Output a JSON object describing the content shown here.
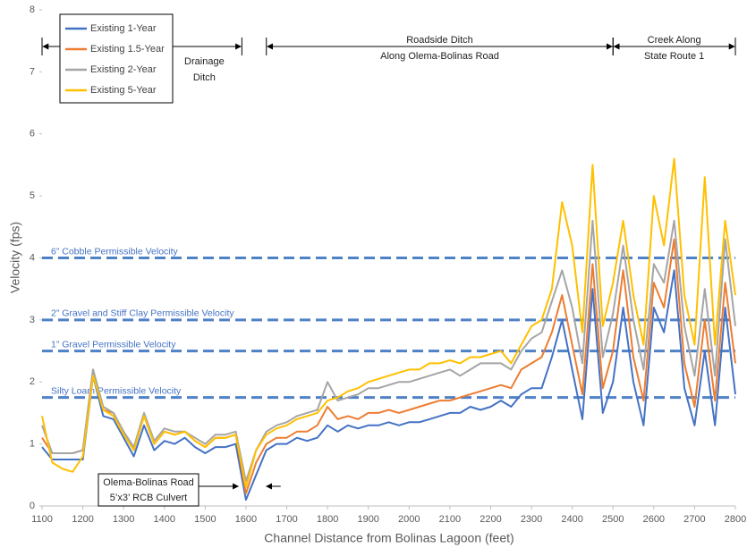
{
  "chart_data": {
    "type": "line",
    "x_label": "Channel Distance from Bolinas Lagoon (feet)",
    "y_label": "Velocity (fps)",
    "xlim": [
      1100,
      2800
    ],
    "xticks": [
      1100,
      1200,
      1300,
      1400,
      1500,
      1600,
      1700,
      1800,
      1900,
      2000,
      2100,
      2200,
      2300,
      2400,
      2500,
      2600,
      2700,
      2800
    ],
    "ylim": [
      0,
      8
    ],
    "yticks": [
      0,
      1,
      2,
      3,
      4,
      5,
      6,
      7,
      8
    ],
    "x": [
      1100,
      1125,
      1150,
      1175,
      1200,
      1225,
      1250,
      1275,
      1300,
      1325,
      1350,
      1375,
      1400,
      1425,
      1450,
      1475,
      1500,
      1525,
      1550,
      1575,
      1600,
      1625,
      1650,
      1675,
      1700,
      1725,
      1750,
      1775,
      1800,
      1825,
      1850,
      1875,
      1900,
      1925,
      1950,
      1975,
      2000,
      2025,
      2050,
      2075,
      2100,
      2125,
      2150,
      2175,
      2200,
      2225,
      2250,
      2275,
      2300,
      2325,
      2350,
      2375,
      2400,
      2425,
      2450,
      2475,
      2500,
      2525,
      2550,
      2575,
      2600,
      2625,
      2650,
      2675,
      2700,
      2725,
      2750,
      2775,
      2800
    ],
    "series": [
      {
        "name": "Existing 1-Year",
        "color": "#4472c4",
        "values": [
          0.95,
          0.75,
          0.75,
          0.75,
          0.75,
          2.1,
          1.45,
          1.4,
          1.1,
          0.8,
          1.3,
          0.9,
          1.05,
          1.0,
          1.1,
          0.95,
          0.85,
          0.95,
          0.95,
          1.0,
          0.1,
          0.5,
          0.9,
          1.0,
          1.0,
          1.1,
          1.05,
          1.1,
          1.3,
          1.2,
          1.3,
          1.25,
          1.3,
          1.3,
          1.35,
          1.3,
          1.35,
          1.35,
          1.4,
          1.45,
          1.5,
          1.5,
          1.6,
          1.55,
          1.6,
          1.7,
          1.6,
          1.8,
          1.9,
          1.9,
          2.4,
          3.0,
          2.2,
          1.4,
          3.5,
          1.5,
          2.0,
          3.2,
          2.0,
          1.3,
          3.2,
          2.8,
          3.8,
          1.9,
          1.3,
          2.5,
          1.3,
          3.2,
          1.8
        ]
      },
      {
        "name": "Existing 1.5-Year",
        "color": "#ed7d31",
        "values": [
          1.1,
          0.85,
          0.85,
          0.85,
          0.9,
          2.2,
          1.55,
          1.5,
          1.2,
          0.9,
          1.45,
          1.0,
          1.2,
          1.15,
          1.2,
          1.05,
          0.95,
          1.1,
          1.1,
          1.15,
          0.2,
          0.7,
          1.0,
          1.1,
          1.1,
          1.2,
          1.2,
          1.3,
          1.6,
          1.4,
          1.45,
          1.4,
          1.5,
          1.5,
          1.55,
          1.5,
          1.55,
          1.6,
          1.65,
          1.7,
          1.7,
          1.75,
          1.8,
          1.85,
          1.9,
          1.95,
          1.9,
          2.2,
          2.3,
          2.4,
          2.8,
          3.4,
          2.6,
          1.8,
          3.9,
          1.9,
          2.5,
          3.8,
          2.4,
          1.7,
          3.6,
          3.2,
          4.3,
          2.3,
          1.6,
          3.0,
          1.7,
          3.6,
          2.3
        ]
      },
      {
        "name": "Existing 2-Year",
        "color": "#a5a5a5",
        "values": [
          1.3,
          0.85,
          0.85,
          0.85,
          0.9,
          2.2,
          1.6,
          1.5,
          1.2,
          0.95,
          1.5,
          1.05,
          1.25,
          1.2,
          1.2,
          1.1,
          1.0,
          1.15,
          1.15,
          1.2,
          0.4,
          0.9,
          1.2,
          1.3,
          1.35,
          1.45,
          1.5,
          1.55,
          2.0,
          1.7,
          1.75,
          1.8,
          1.9,
          1.9,
          1.95,
          2.0,
          2.0,
          2.05,
          2.1,
          2.15,
          2.2,
          2.1,
          2.2,
          2.3,
          2.3,
          2.3,
          2.2,
          2.5,
          2.7,
          2.8,
          3.3,
          3.8,
          3.2,
          2.3,
          4.6,
          2.4,
          3.1,
          4.2,
          3.0,
          2.2,
          3.9,
          3.6,
          4.6,
          2.9,
          2.1,
          3.5,
          2.1,
          4.3,
          2.9
        ]
      },
      {
        "name": "Existing 5-Year",
        "color": "#ffc000",
        "values": [
          1.45,
          0.7,
          0.6,
          0.55,
          0.8,
          2.1,
          1.55,
          1.45,
          1.15,
          0.9,
          1.45,
          1.0,
          1.2,
          1.15,
          1.2,
          1.05,
          0.95,
          1.1,
          1.1,
          1.15,
          0.3,
          0.9,
          1.15,
          1.25,
          1.3,
          1.4,
          1.45,
          1.5,
          1.7,
          1.75,
          1.85,
          1.9,
          2.0,
          2.05,
          2.1,
          2.15,
          2.2,
          2.2,
          2.3,
          2.3,
          2.35,
          2.3,
          2.4,
          2.4,
          2.45,
          2.5,
          2.3,
          2.6,
          2.9,
          3.0,
          3.5,
          4.9,
          4.2,
          2.8,
          5.5,
          2.9,
          3.6,
          4.6,
          3.4,
          2.6,
          5.0,
          4.2,
          5.6,
          3.4,
          2.6,
          5.3,
          2.6,
          4.6,
          3.4
        ]
      }
    ],
    "reference_lines": [
      {
        "value": 4,
        "label": "6” Cobble Permissible Velocity",
        "color": "#4f81c7"
      },
      {
        "value": 3,
        "label": "2” Gravel and Stiff Clay Permissible Velocity",
        "color": "#4f81c7"
      },
      {
        "value": 2.5,
        "label": "1” Gravel Permissible Velocity",
        "color": "#4f81c7"
      },
      {
        "value": 1.75,
        "label": "Silty Loam Permissible Velocity",
        "color": "#4f81c7"
      }
    ],
    "sections": [
      {
        "start": 1100,
        "end": 1590,
        "lines": [
          "Drainage",
          "Ditch"
        ]
      },
      {
        "start": 1650,
        "end": 2500,
        "lines": [
          "Roadside Ditch",
          "Along Olema-Bolinas Road"
        ]
      },
      {
        "start": 2500,
        "end": 2800,
        "lines": [
          "Creek Along",
          "State Route 1"
        ]
      }
    ],
    "culvert": {
      "lines": [
        "Olema-Bolinas Road",
        "5’x3’ RCB Culvert"
      ]
    },
    "legend": "upper left"
  }
}
